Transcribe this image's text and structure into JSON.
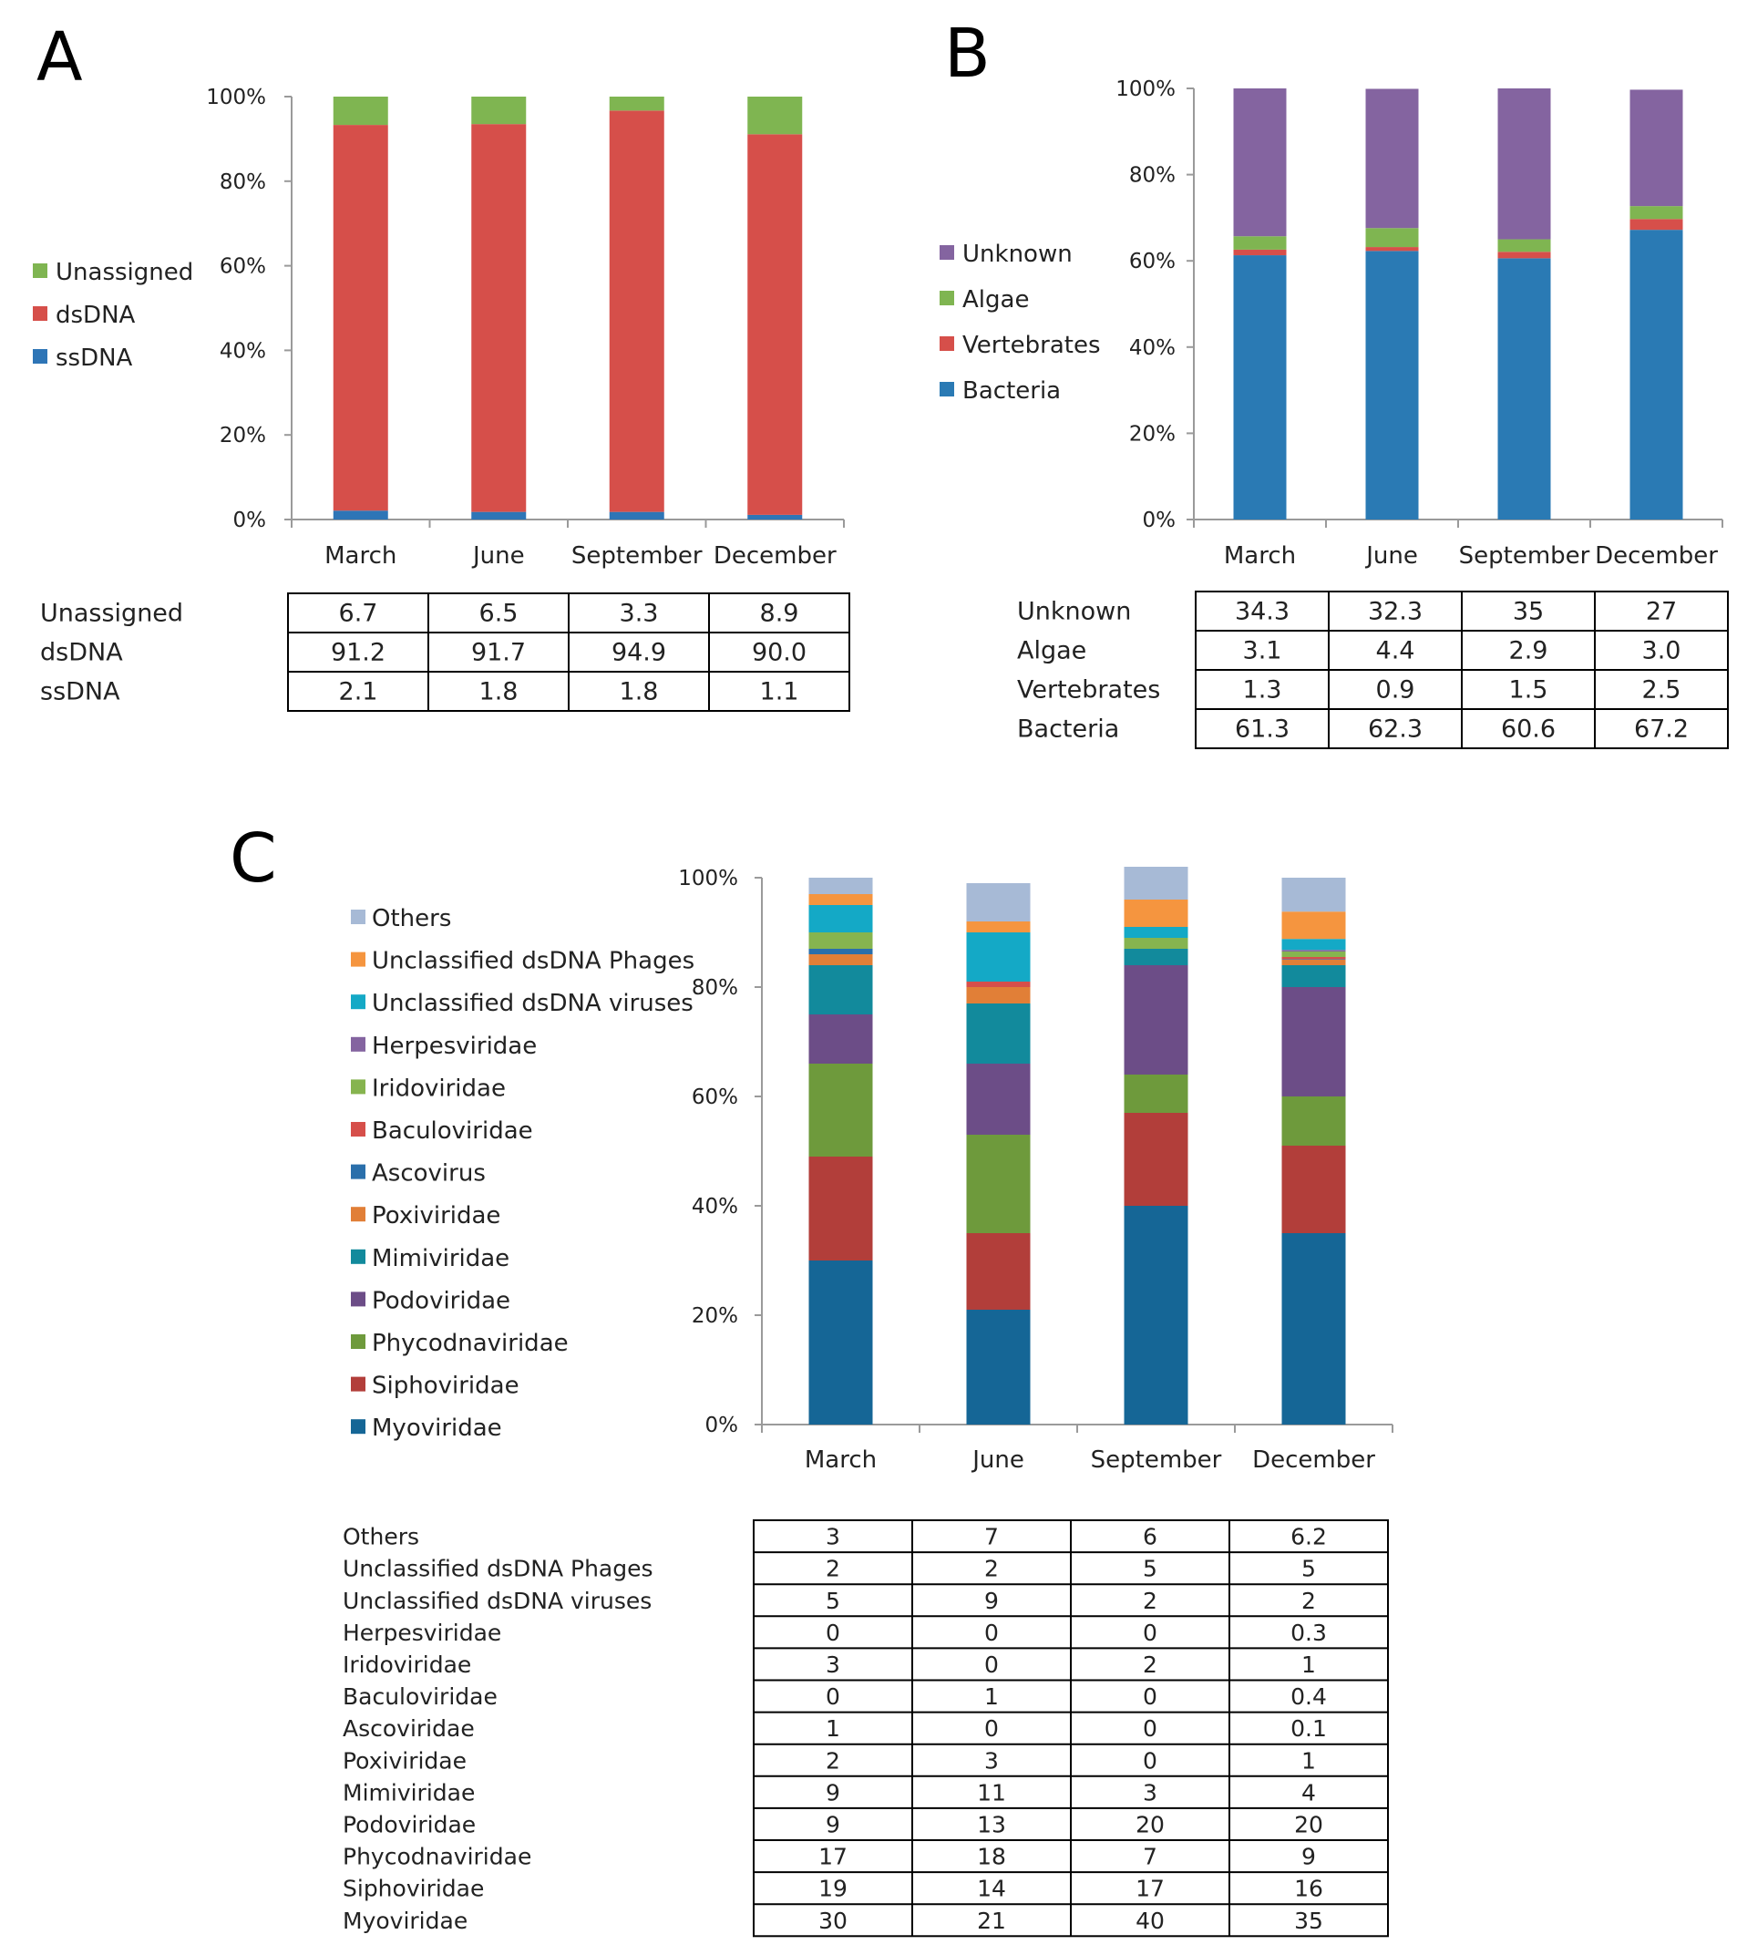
{
  "chart_data": [
    {
      "panel": "A",
      "type": "bar",
      "stacked": true,
      "categories": [
        "March",
        "June",
        "September",
        "December"
      ],
      "y_ticks": [
        "0%",
        "20%",
        "40%",
        "60%",
        "80%",
        "100%"
      ],
      "ylim": [
        0,
        100
      ],
      "legend": [
        "Unassigned",
        "dsDNA",
        "ssDNA"
      ],
      "series": [
        {
          "name": "ssDNA",
          "color": "#2e75b6",
          "values": [
            2.1,
            1.8,
            1.8,
            1.1
          ]
        },
        {
          "name": "dsDNA",
          "color": "#d64f4a",
          "values": [
            91.2,
            91.7,
            94.9,
            90.0
          ]
        },
        {
          "name": "Unassigned",
          "color": "#7fb551",
          "values": [
            6.7,
            6.5,
            3.3,
            8.9
          ]
        }
      ],
      "table": {
        "rows": [
          {
            "label": "Unassigned",
            "values": [
              "6.7",
              "6.5",
              "3.3",
              "8.9"
            ]
          },
          {
            "label": "dsDNA",
            "values": [
              "91.2",
              "91.7",
              "94.9",
              "90.0"
            ]
          },
          {
            "label": "ssDNA",
            "values": [
              "2.1",
              "1.8",
              "1.8",
              "1.1"
            ]
          }
        ]
      }
    },
    {
      "panel": "B",
      "type": "bar",
      "stacked": true,
      "categories": [
        "March",
        "June",
        "September",
        "December"
      ],
      "y_ticks": [
        "0%",
        "20%",
        "40%",
        "60%",
        "80%",
        "100%"
      ],
      "ylim": [
        0,
        100
      ],
      "legend": [
        "Unknown",
        "Algae",
        "Vertebrates",
        "Bacteria"
      ],
      "series": [
        {
          "name": "Bacteria",
          "color": "#2a7ab4",
          "values": [
            61.3,
            62.3,
            60.6,
            67.2
          ]
        },
        {
          "name": "Vertebrates",
          "color": "#d64f4a",
          "values": [
            1.3,
            0.9,
            1.5,
            2.5
          ]
        },
        {
          "name": "Algae",
          "color": "#7fb551",
          "values": [
            3.1,
            4.4,
            2.9,
            3.0
          ]
        },
        {
          "name": "Unknown",
          "color": "#8464a0",
          "values": [
            34.3,
            32.3,
            35,
            27
          ]
        }
      ],
      "table": {
        "rows": [
          {
            "label": "Unknown",
            "values": [
              "34.3",
              "32.3",
              "35",
              "27"
            ]
          },
          {
            "label": "Algae",
            "values": [
              "3.1",
              "4.4",
              "2.9",
              "3.0"
            ]
          },
          {
            "label": "Vertebrates",
            "values": [
              "1.3",
              "0.9",
              "1.5",
              "2.5"
            ]
          },
          {
            "label": "Bacteria",
            "values": [
              "61.3",
              "62.3",
              "60.6",
              "67.2"
            ]
          }
        ]
      }
    },
    {
      "panel": "C",
      "type": "bar",
      "stacked": true,
      "categories": [
        "March",
        "June",
        "September",
        "December"
      ],
      "y_ticks": [
        "0%",
        "20%",
        "40%",
        "60%",
        "80%",
        "100%"
      ],
      "ylim": [
        0,
        100
      ],
      "legend": [
        "Others",
        "Unclassified dsDNA Phages",
        "Unclassified dsDNA viruses",
        "Herpesviridae",
        "Iridoviridae",
        "Baculoviridae",
        "Ascovirus",
        "Poxiviridae",
        "Mimiviridae",
        "Podoviridae",
        "Phycodnaviridae",
        "Siphoviridae",
        "Myoviridae"
      ],
      "series": [
        {
          "name": "Myoviridae",
          "color": "#156696",
          "values": [
            30,
            21,
            40,
            35
          ]
        },
        {
          "name": "Siphoviridae",
          "color": "#b23e3a",
          "values": [
            19,
            14,
            17,
            16
          ]
        },
        {
          "name": "Phycodnaviridae",
          "color": "#6e9a3c",
          "values": [
            17,
            18,
            7,
            9
          ]
        },
        {
          "name": "Podoviridae",
          "color": "#6c4d87",
          "values": [
            9,
            13,
            20,
            20
          ]
        },
        {
          "name": "Mimiviridae",
          "color": "#128a9c",
          "values": [
            9,
            11,
            3,
            4
          ]
        },
        {
          "name": "Poxiviridae",
          "color": "#e17f37",
          "values": [
            2,
            3,
            0,
            1
          ]
        },
        {
          "name": "Ascovirus",
          "color": "#2a6fab",
          "values": [
            1,
            0,
            0,
            0.1
          ]
        },
        {
          "name": "Baculoviridae",
          "color": "#d64f4a",
          "values": [
            0,
            1,
            0,
            0.4
          ]
        },
        {
          "name": "Iridoviridae",
          "color": "#86b44f",
          "values": [
            3,
            0,
            2,
            1
          ]
        },
        {
          "name": "Herpesviridae",
          "color": "#8464a0",
          "values": [
            0,
            0,
            0,
            0.3
          ]
        },
        {
          "name": "Unclassified dsDNA viruses",
          "color": "#14a9c6",
          "values": [
            5,
            9,
            2,
            2
          ]
        },
        {
          "name": "Unclassified dsDNA Phages",
          "color": "#f5953f",
          "values": [
            2,
            2,
            5,
            5
          ]
        },
        {
          "name": "Others",
          "color": "#a7bad6",
          "values": [
            3,
            7,
            6,
            6.2
          ]
        }
      ],
      "table": {
        "rows": [
          {
            "label": "Others",
            "values": [
              "3",
              "7",
              "6",
              "6.2"
            ]
          },
          {
            "label": "Unclassified dsDNA Phages",
            "values": [
              "2",
              "2",
              "5",
              "5"
            ]
          },
          {
            "label": "Unclassified dsDNA viruses",
            "values": [
              "5",
              "9",
              "2",
              "2"
            ]
          },
          {
            "label": "Herpesviridae",
            "values": [
              "0",
              "0",
              "0",
              "0.3"
            ]
          },
          {
            "label": "Iridoviridae",
            "values": [
              "3",
              "0",
              "2",
              "1"
            ]
          },
          {
            "label": "Baculoviridae",
            "values": [
              "0",
              "1",
              "0",
              "0.4"
            ]
          },
          {
            "label": "Ascoviridae",
            "values": [
              "1",
              "0",
              "0",
              "0.1"
            ]
          },
          {
            "label": "Poxiviridae",
            "values": [
              "2",
              "3",
              "0",
              "1"
            ]
          },
          {
            "label": "Mimiviridae",
            "values": [
              "9",
              "11",
              "3",
              "4"
            ]
          },
          {
            "label": "Podoviridae",
            "values": [
              "9",
              "13",
              "20",
              "20"
            ]
          },
          {
            "label": "Phycodnaviridae",
            "values": [
              "17",
              "18",
              "7",
              "9"
            ]
          },
          {
            "label": "Siphoviridae",
            "values": [
              "19",
              "14",
              "17",
              "16"
            ]
          },
          {
            "label": "Myoviridae",
            "values": [
              "30",
              "21",
              "40",
              "35"
            ]
          }
        ]
      }
    }
  ]
}
